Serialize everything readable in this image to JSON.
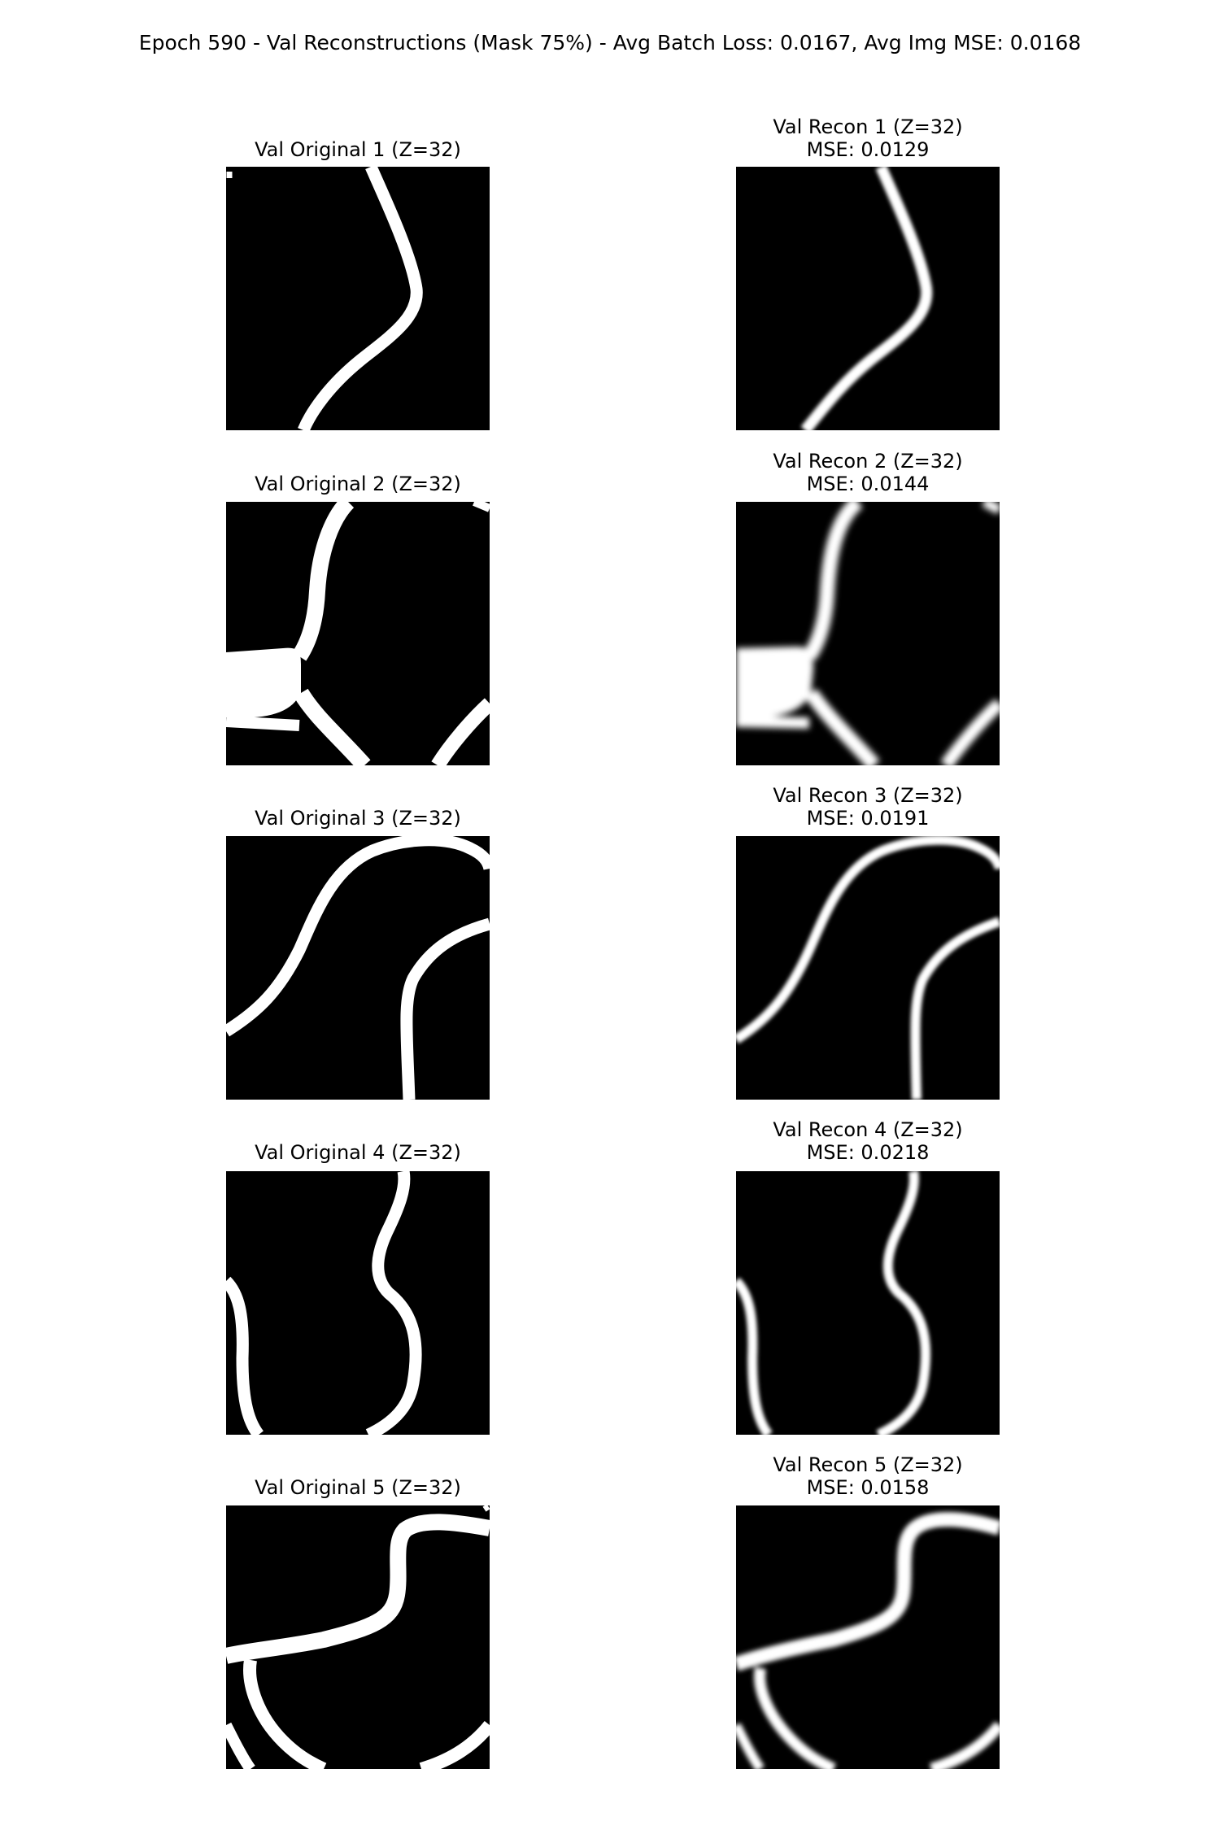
{
  "figure": {
    "suptitle": "Epoch 590 - Val Reconstructions (Mask 75%) - Avg Batch Loss: 0.0167, Avg Img MSE: 0.0168"
  },
  "rows": [
    {
      "original_title": "Val Original 1 (Z=32)",
      "recon_title": "Val Recon 1 (Z=32)",
      "recon_mse": "MSE: 0.0129"
    },
    {
      "original_title": "Val Original 2 (Z=32)",
      "recon_title": "Val Recon 2 (Z=32)",
      "recon_mse": "MSE: 0.0144"
    },
    {
      "original_title": "Val Original 3 (Z=32)",
      "recon_title": "Val Recon 3 (Z=32)",
      "recon_mse": "MSE: 0.0191"
    },
    {
      "original_title": "Val Original 4 (Z=32)",
      "recon_title": "Val Recon 4 (Z=32)",
      "recon_mse": "MSE: 0.0218"
    },
    {
      "original_title": "Val Original 5 (Z=32)",
      "recon_title": "Val Recon 5 (Z=32)",
      "recon_mse": "MSE: 0.0158"
    }
  ],
  "colors": {
    "background": "#000000",
    "foreground": "#ffffff"
  }
}
